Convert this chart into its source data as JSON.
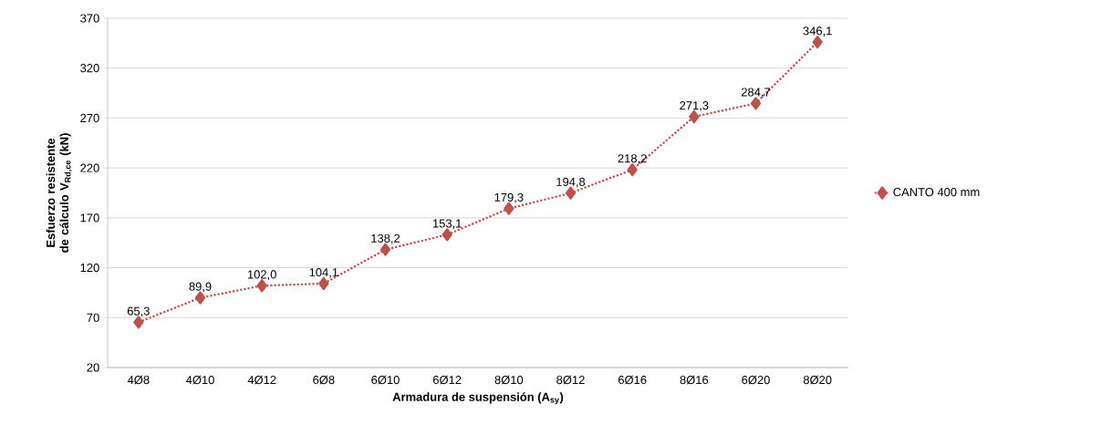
{
  "chart_data": {
    "type": "line",
    "xlabel": "Armadura de suspensión (A$_{sy}$)",
    "ylabel": "Esfuerzo resistente de cálculo V$_{Rd,ce}$ (kN)",
    "categories": [
      "4Ø8",
      "4Ø10",
      "4Ø12",
      "6Ø8",
      "6Ø10",
      "6Ø12",
      "8Ø10",
      "8Ø12",
      "6Ø16",
      "8Ø16",
      "6Ø20",
      "8Ø20"
    ],
    "series": [
      {
        "name": "CANTO 400 mm",
        "color": "#c0504d",
        "values": [
          65.3,
          89.9,
          102.0,
          104.1,
          138.2,
          153.1,
          179.3,
          194.8,
          218.2,
          271.3,
          284.7,
          346.1
        ],
        "value_labels": [
          "65,3",
          "89,9",
          "102,0",
          "104,1",
          "138,2",
          "153,1",
          "179,3",
          "194,8",
          "218,2",
          "271,3",
          "284,7",
          "346,1"
        ]
      }
    ],
    "ylim": [
      20,
      370
    ],
    "yticks": [
      20,
      70,
      120,
      170,
      220,
      270,
      320,
      370
    ],
    "grid": "y",
    "legend": "right",
    "marker": "diamond",
    "line_style": "dotted"
  }
}
